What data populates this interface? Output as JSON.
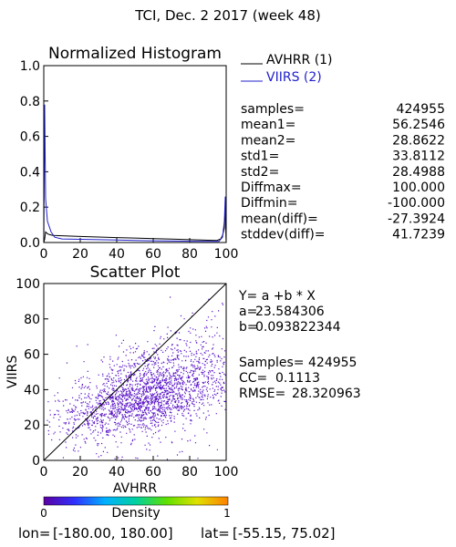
{
  "page": {
    "title": "TCI,  Dec. 2 2017 (week 48)"
  },
  "chart_data": [
    {
      "type": "line",
      "title": "Normalized Histogram",
      "xlim": [
        0,
        100
      ],
      "ylim": [
        0,
        1.0
      ],
      "xticks": [
        "0",
        "20",
        "40",
        "60",
        "80",
        "100"
      ],
      "yticks": [
        "0.0",
        "0.2",
        "0.4",
        "0.6",
        "0.8",
        "1.0"
      ],
      "legend_position": "top-right, outside",
      "series": [
        {
          "name": "AVHRR (1)",
          "color": "#000000",
          "x": [
            0,
            0.5,
            1,
            2,
            3,
            5,
            10,
            20,
            30,
            40,
            50,
            60,
            70,
            80,
            90,
            95,
            97,
            98,
            99,
            99.5,
            100
          ],
          "y": [
            0.0,
            0.02,
            0.06,
            0.05,
            0.045,
            0.04,
            0.038,
            0.034,
            0.031,
            0.028,
            0.025,
            0.022,
            0.019,
            0.016,
            0.013,
            0.012,
            0.02,
            0.04,
            0.08,
            0.2,
            0.0
          ]
        },
        {
          "name": "VIIRS (2)",
          "color": "#2020cc",
          "x": [
            0,
            0.5,
            1,
            2,
            4,
            6,
            10,
            20,
            30,
            40,
            50,
            60,
            70,
            80,
            90,
            96,
            98,
            99,
            99.5,
            100
          ],
          "y": [
            0.0,
            0.78,
            0.25,
            0.12,
            0.06,
            0.03,
            0.02,
            0.018,
            0.016,
            0.014,
            0.012,
            0.01,
            0.008,
            0.007,
            0.006,
            0.006,
            0.03,
            0.12,
            0.26,
            0.0
          ]
        }
      ],
      "stats": [
        {
          "label": "samples=",
          "value": "424955"
        },
        {
          "label": "mean1=",
          "value": "56.2546"
        },
        {
          "label": "mean2=",
          "value": "28.8622"
        },
        {
          "label": "std1=",
          "value": "33.8112"
        },
        {
          "label": "std2=",
          "value": "28.4988"
        },
        {
          "label": "Diffmax=",
          "value": "100.000"
        },
        {
          "label": "Diffmin=",
          "value": "-100.000"
        },
        {
          "label": "mean(diff)=",
          "value": "-27.3924"
        },
        {
          "label": "stddev(diff)=",
          "value": "41.7239"
        }
      ]
    },
    {
      "type": "scatter",
      "title": "Scatter Plot",
      "xlabel": "AVHRR",
      "ylabel": "VIIRS",
      "xlim": [
        0,
        100
      ],
      "ylim": [
        0,
        100
      ],
      "xticks": [
        "0",
        "20",
        "40",
        "60",
        "80",
        "100"
      ],
      "yticks": [
        "0",
        "20",
        "40",
        "60",
        "80",
        "100"
      ],
      "one_to_one_line": true,
      "point_color": "#5a14c8",
      "density_scale": {
        "label": "Density",
        "min": "0",
        "max": "1",
        "colors": [
          "#5a00a0",
          "#3030ff",
          "#00b0ff",
          "#00d0a0",
          "#60e000",
          "#e0e000",
          "#ff8000"
        ]
      },
      "regression": {
        "equation": "Y= a +b * X",
        "a_label": "a=",
        "a_value": "23.584306",
        "b_label": "b=",
        "b_value": "0.093822344"
      },
      "fit_stats": [
        {
          "label": "Samples=",
          "value": "424955"
        },
        {
          "label": "CC=",
          "value": "0.1113"
        },
        {
          "label": "RMSE=",
          "value": "28.320963"
        }
      ]
    }
  ],
  "footer": {
    "lon_label": "lon=",
    "lon_range": "[-180.00, 180.00]",
    "lat_label": "lat=",
    "lat_range": "[-55.15, 75.02]"
  }
}
